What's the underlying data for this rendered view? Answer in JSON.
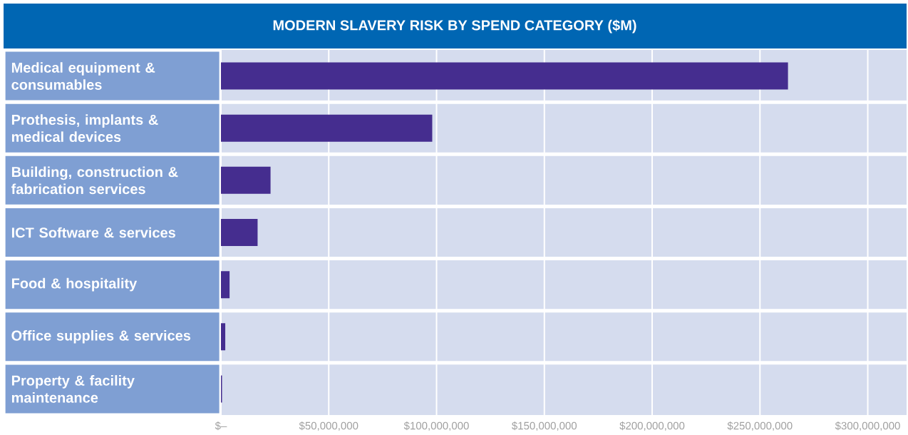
{
  "chart_data": {
    "type": "bar",
    "orientation": "horizontal",
    "title": "MODERN SLAVERY RISK BY SPEND CATEGORY ($M)",
    "categories": [
      "Medical equipment & consumables",
      "Prothesis, implants & medical devices",
      "Building, construction & fabrication services",
      "ICT Software & services",
      "Food & hospitality",
      "Office supplies & services",
      "Property & facility maintenance"
    ],
    "values": [
      263000000,
      98000000,
      23000000,
      17000000,
      4000000,
      2000000,
      500000
    ],
    "color": "#452d8f",
    "xlim": [
      0,
      318000000
    ],
    "xticks": [
      {
        "value": 0,
        "label": "$–"
      },
      {
        "value": 50000000,
        "label": "$50,000,000"
      },
      {
        "value": 100000000,
        "label": "$100,000,000"
      },
      {
        "value": 150000000,
        "label": "$150,000,000"
      },
      {
        "value": 200000000,
        "label": "$200,000,000"
      },
      {
        "value": 250000000,
        "label": "$250,000,000"
      },
      {
        "value": 300000000,
        "label": "$300,000,000"
      }
    ],
    "grid": "x"
  }
}
